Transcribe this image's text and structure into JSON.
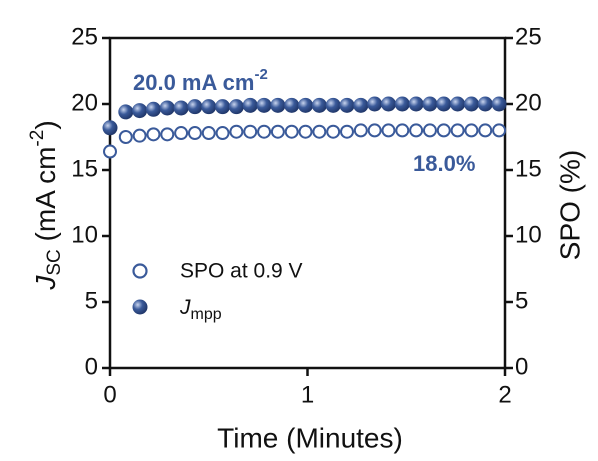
{
  "chart_data": {
    "type": "scatter",
    "xlabel": "Time (Minutes)",
    "ylabel": {
      "main": "J",
      "sub": "SC",
      "rest": " (mA cm",
      "sup": "-2",
      "end": ")"
    },
    "y2label": "SPO (%)",
    "x": [
      0,
      0.08,
      0.15,
      0.22,
      0.29,
      0.36,
      0.43,
      0.5,
      0.57,
      0.64,
      0.71,
      0.78,
      0.85,
      0.92,
      0.99,
      1.06,
      1.13,
      1.2,
      1.27,
      1.34,
      1.41,
      1.48,
      1.55,
      1.62,
      1.69,
      1.76,
      1.83,
      1.9,
      1.97
    ],
    "series": [
      {
        "name": "SPO at 0.9 V",
        "color": "#3a5a9a",
        "marker": "open",
        "axis": "y2",
        "values": [
          16.4,
          17.5,
          17.6,
          17.7,
          17.7,
          17.8,
          17.8,
          17.8,
          17.8,
          17.9,
          17.9,
          17.9,
          17.9,
          17.9,
          17.9,
          17.9,
          17.9,
          17.9,
          18.0,
          18.0,
          18.0,
          18.0,
          18.0,
          18.0,
          18.0,
          18.0,
          18.0,
          18.0,
          18.0
        ]
      },
      {
        "name": "J",
        "name_sub": "mpp",
        "color": "#3a5a9a",
        "marker": "filled",
        "values": [
          18.2,
          19.4,
          19.5,
          19.6,
          19.7,
          19.7,
          19.8,
          19.8,
          19.8,
          19.8,
          19.9,
          19.9,
          19.9,
          19.9,
          19.9,
          19.9,
          19.9,
          19.9,
          19.9,
          20.0,
          20.0,
          20.0,
          20.0,
          20.0,
          20.0,
          20.0,
          20.0,
          20.0,
          20.0
        ]
      }
    ],
    "annotations": [
      {
        "text": "20.0 mA cm",
        "sup": "-2"
      },
      {
        "text": "18.0%"
      }
    ],
    "xlim": [
      0,
      2
    ],
    "xticks": [
      0,
      1,
      2
    ],
    "ylim": [
      0,
      25
    ],
    "yticks": [
      0,
      5,
      10,
      15,
      20,
      25
    ],
    "y2lim": [
      0,
      25
    ],
    "y2ticks": [
      0,
      5,
      10,
      15,
      20,
      25
    ],
    "legend": "lower-left",
    "grid": false
  }
}
